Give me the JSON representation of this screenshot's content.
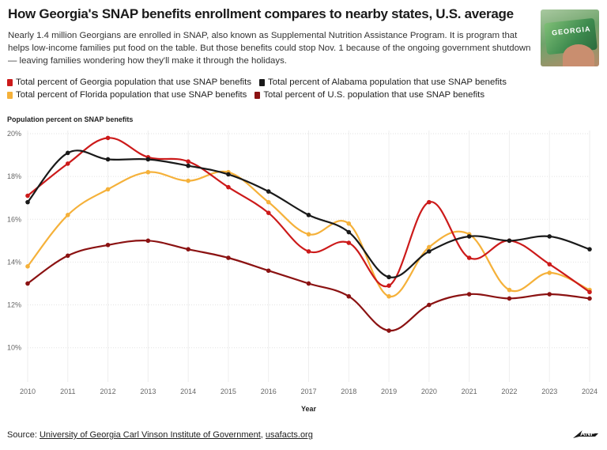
{
  "header": {
    "title": "How Georgia's SNAP benefits enrollment compares to nearby states, U.S. average",
    "subtitle": "Nearly 1.4 million Georgians are enrolled in SNAP, also known as Supplemental Nutrition Assistance Program. It is program that helps low-income families put food on the table. But those benefits could stop Nov. 1 because of the ongoing government shutdown — leaving families wondering how they'll make it through the holidays.",
    "thumbnail_text": "GEORGIA"
  },
  "footer": {
    "source_label": "Source:",
    "source_link_1": "University of Georgia Carl Vinson Institute of Government",
    "source_sep": ",",
    "source_link_2": "usafacts.org",
    "logo_text": "ANF"
  },
  "chart_data": {
    "type": "line",
    "title": "How Georgia's SNAP benefits enrollment compares to nearby states, U.S. average",
    "ylabel": "Population percent on SNAP benefits",
    "xlabel": "Year",
    "ylim": [
      8.4,
      20
    ],
    "yticks": [
      10,
      12,
      14,
      16,
      18,
      20
    ],
    "ytick_labels": [
      "10%",
      "12%",
      "14%",
      "16%",
      "18%",
      "20%"
    ],
    "grid": true,
    "legend_position": "top-left",
    "x": [
      "2010",
      "2011",
      "2012",
      "2013",
      "2014",
      "2015",
      "2016",
      "2017",
      "2018",
      "2019",
      "2020",
      "2021",
      "2022",
      "2023",
      "2024"
    ],
    "series": [
      {
        "name": "Total percent of Georgia population that use SNAP benefits",
        "color": "#cc1a1a",
        "values": [
          17.1,
          18.6,
          19.8,
          18.9,
          18.7,
          17.5,
          16.3,
          14.5,
          14.9,
          12.9,
          16.8,
          14.2,
          15.0,
          13.9,
          12.6
        ]
      },
      {
        "name": "Total percent of Alabama population that use SNAP benefits",
        "color": "#1a1a1a",
        "values": [
          16.8,
          19.1,
          18.8,
          18.8,
          18.5,
          18.1,
          17.3,
          16.2,
          15.4,
          13.3,
          14.5,
          15.2,
          15.0,
          15.2,
          14.6
        ]
      },
      {
        "name": "Total percent of Florida population that use SNAP benefits",
        "color": "#f5b13a",
        "values": [
          13.8,
          16.2,
          17.4,
          18.2,
          17.8,
          18.2,
          16.8,
          15.3,
          15.8,
          12.4,
          14.7,
          15.3,
          12.7,
          13.5,
          12.7
        ]
      },
      {
        "name": "Total percent of U.S. population that use SNAP benefits",
        "color": "#8b1212",
        "values": [
          13.0,
          14.3,
          14.8,
          15.0,
          14.6,
          14.2,
          13.6,
          13.0,
          12.4,
          10.8,
          12.0,
          12.5,
          12.3,
          12.5,
          12.3
        ]
      }
    ]
  }
}
